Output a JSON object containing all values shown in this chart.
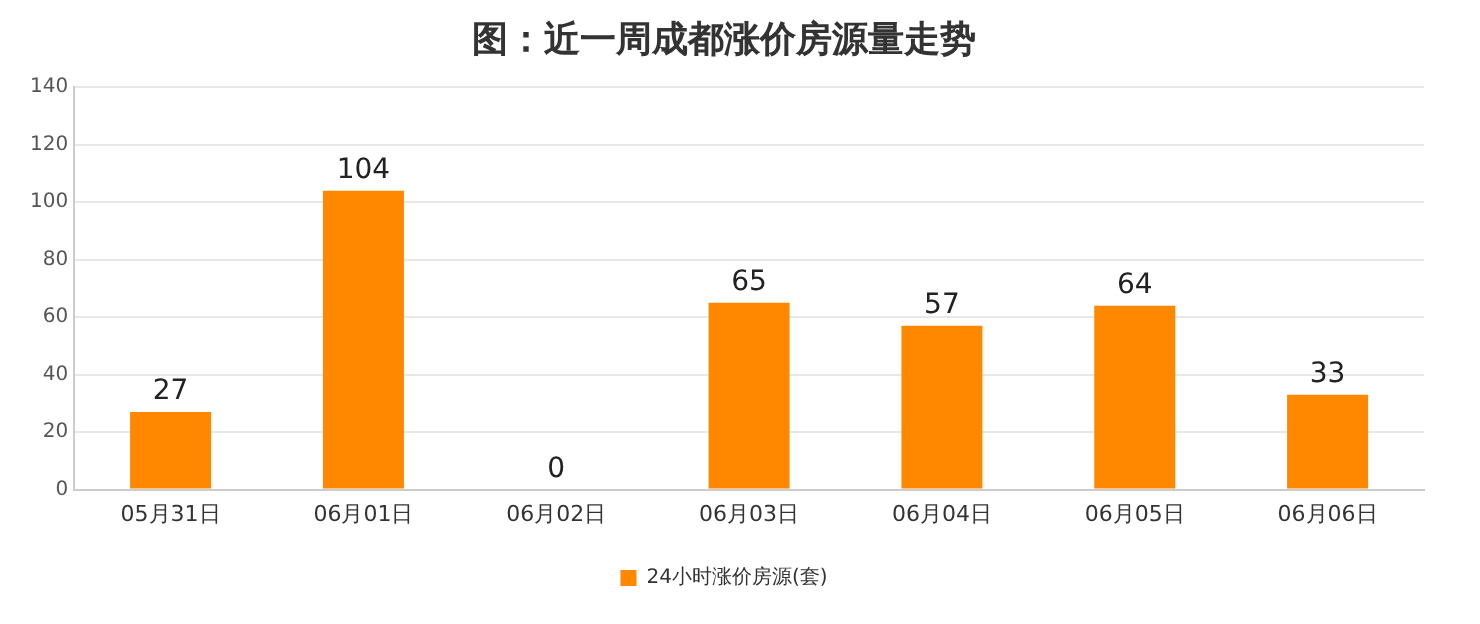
{
  "chart_data": {
    "type": "bar",
    "title": "图：近一周成都涨价房源量走势",
    "categories": [
      "05月31日",
      "06月01日",
      "06月02日",
      "06月03日",
      "06月04日",
      "06月05日",
      "06月06日"
    ],
    "series": [
      {
        "name": "24小时涨价房源(套)",
        "color": "#ff8800",
        "values": [
          27,
          104,
          0,
          65,
          57,
          64,
          33
        ]
      }
    ],
    "ylim": [
      0,
      140
    ],
    "yticks": [
      0,
      20,
      40,
      60,
      80,
      100,
      120,
      140
    ],
    "grid": "y",
    "legend": "bottom",
    "data_labels": true
  }
}
